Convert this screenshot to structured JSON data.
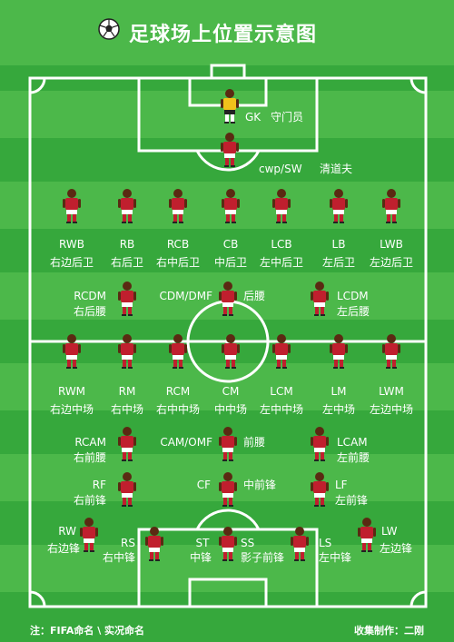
{
  "title": "足球场上位置示意图",
  "colors": {
    "pitch_light": "#4cb84a",
    "pitch_dark": "#36a83c",
    "lines": "#ffffff",
    "shirt": "#c01f2e",
    "keeper_shirt": "#f2c21b"
  },
  "positions": {
    "gk": {
      "code": "GK",
      "name": "守门员"
    },
    "sw": {
      "code": "cwp/SW",
      "name": "清道夫"
    },
    "rwb": {
      "code": "RWB",
      "name": "右边后卫"
    },
    "rb": {
      "code": "RB",
      "name": "右后卫"
    },
    "rcb": {
      "code": "RCB",
      "name": "右中后卫"
    },
    "cb": {
      "code": "CB",
      "name": "中后卫"
    },
    "lcb": {
      "code": "LCB",
      "name": "左中后卫"
    },
    "lb": {
      "code": "LB",
      "name": "左后卫"
    },
    "lwb": {
      "code": "LWB",
      "name": "左边后卫"
    },
    "rcdm": {
      "code": "RCDM",
      "name": "右后腰"
    },
    "cdm": {
      "code": "CDM/DMF",
      "name": "后腰"
    },
    "lcdm": {
      "code": "LCDM",
      "name": "左后腰"
    },
    "rwm": {
      "code": "RWM",
      "name": "右边中场"
    },
    "rm": {
      "code": "RM",
      "name": "右中场"
    },
    "rcm": {
      "code": "RCM",
      "name": "右中中场"
    },
    "cm": {
      "code": "CM",
      "name": "中中场"
    },
    "lcm": {
      "code": "LCM",
      "name": "左中中场"
    },
    "lm": {
      "code": "LM",
      "name": "左中场"
    },
    "lwm": {
      "code": "LWM",
      "name": "左边中场"
    },
    "rcam": {
      "code": "RCAM",
      "name": "右前腰"
    },
    "cam": {
      "code": "CAM/OMF",
      "name": "前腰"
    },
    "lcam": {
      "code": "LCAM",
      "name": "左前腰"
    },
    "rf": {
      "code": "RF",
      "name": "右前锋"
    },
    "cf": {
      "code": "CF",
      "name": "中前锋"
    },
    "lf": {
      "code": "LF",
      "name": "左前锋"
    },
    "rw": {
      "code": "RW",
      "name": "右边锋"
    },
    "rs": {
      "code": "RS",
      "name": "右中锋"
    },
    "st": {
      "code": "ST",
      "name": "中锋"
    },
    "ss": {
      "code": "SS",
      "name": "影子前锋"
    },
    "ls": {
      "code": "LS",
      "name": "左中锋"
    },
    "lw": {
      "code": "LW",
      "name": "左边锋"
    }
  },
  "footer": {
    "note": "注：FIFA命名 \\ 实况命名",
    "credit": "收集制作：二刚"
  }
}
